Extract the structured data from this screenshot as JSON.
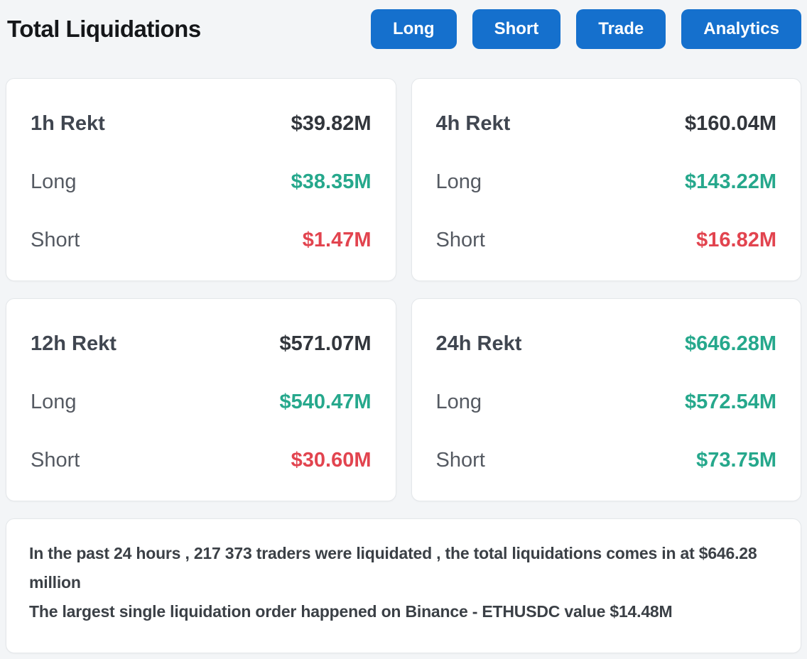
{
  "header": {
    "title": "Total Liquidations",
    "buttons": [
      {
        "label": "Long"
      },
      {
        "label": "Short"
      },
      {
        "label": "Trade"
      },
      {
        "label": "Analytics"
      }
    ]
  },
  "colors": {
    "accent_blue": "#1570cd",
    "green": "#26a88c",
    "red": "#e2444f",
    "dark": "#32363c"
  },
  "cards": [
    {
      "title": "1h Rekt",
      "total": "$39.82M",
      "total_color": "dark",
      "rows": [
        {
          "label": "Long",
          "value": "$38.35M",
          "color": "green"
        },
        {
          "label": "Short",
          "value": "$1.47M",
          "color": "red"
        }
      ]
    },
    {
      "title": "4h Rekt",
      "total": "$160.04M",
      "total_color": "dark",
      "rows": [
        {
          "label": "Long",
          "value": "$143.22M",
          "color": "green"
        },
        {
          "label": "Short",
          "value": "$16.82M",
          "color": "red"
        }
      ]
    },
    {
      "title": "12h Rekt",
      "total": "$571.07M",
      "total_color": "dark",
      "rows": [
        {
          "label": "Long",
          "value": "$540.47M",
          "color": "green"
        },
        {
          "label": "Short",
          "value": "$30.60M",
          "color": "red"
        }
      ]
    },
    {
      "title": "24h Rekt",
      "total": "$646.28M",
      "total_color": "green",
      "rows": [
        {
          "label": "Long",
          "value": "$572.54M",
          "color": "green"
        },
        {
          "label": "Short",
          "value": "$73.75M",
          "color": "green"
        }
      ]
    }
  ],
  "summary": {
    "line1": "In the past 24 hours , 217 373 traders were liquidated , the total liquidations comes in at $646.28 million",
    "line2": "The largest single liquidation order happened on Binance - ETHUSDC value $14.48M"
  }
}
